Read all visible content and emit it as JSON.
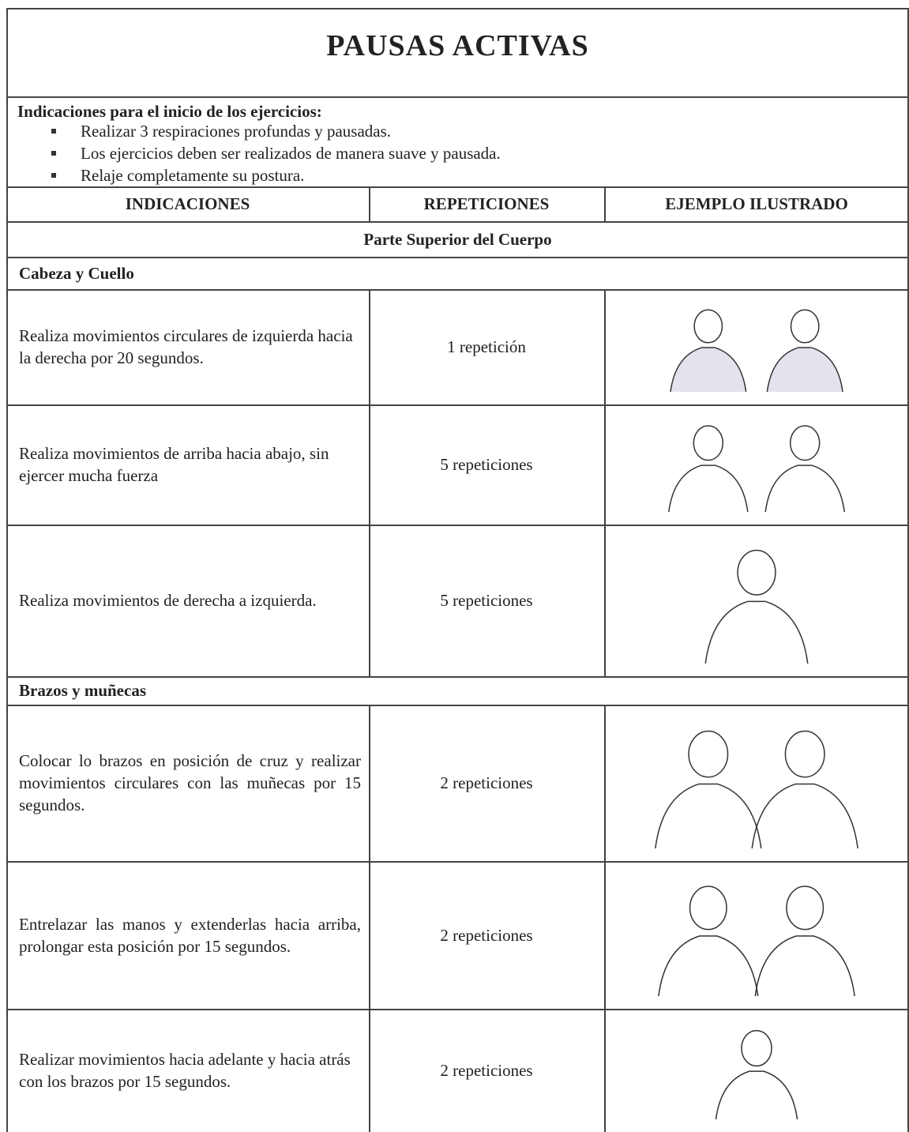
{
  "title": "PAUSAS ACTIVAS",
  "instructions": {
    "heading": "Indicaciones para el inicio de los ejercicios:",
    "items": [
      "Realizar 3 respiraciones profundas y pausadas.",
      "Los ejercicios deben ser realizados de manera suave y pausada.",
      "Relaje completamente su postura."
    ]
  },
  "table": {
    "headers": [
      "INDICACIONES",
      "REPETICIONES",
      "EJEMPLO ILUSTRADO"
    ],
    "section": "Parte Superior del Cuerpo",
    "groups": [
      {
        "label": "Cabeza y Cuello",
        "rows": [
          {
            "indication": "Realiza movimientos circulares de izquierda hacia la derecha por 20 segundos.",
            "repetitions": "1 repetición"
          },
          {
            "indication": "Realiza movimientos de arriba hacia abajo, sin ejercer mucha fuerza",
            "repetitions": "5 repeticiones"
          },
          {
            "indication": "Realiza movimientos de derecha a izquierda.",
            "repetitions": "5 repeticiones"
          }
        ]
      },
      {
        "label": "Brazos y muñecas",
        "rows": [
          {
            "indication": "Colocar lo brazos en posición de cruz y realizar movimientos circulares con las muñecas por 15 segundos.",
            "repetitions": "2 repeticiones"
          },
          {
            "indication": "Entrelazar las manos y extenderlas hacia arriba, prolongar esta posición por 15 segundos.",
            "repetitions": "2 repeticiones"
          },
          {
            "indication": "Realizar movimientos hacia adelante y hacia atrás con los brazos por 15 segundos.",
            "repetitions": "2 repeticiones"
          }
        ]
      }
    ]
  }
}
